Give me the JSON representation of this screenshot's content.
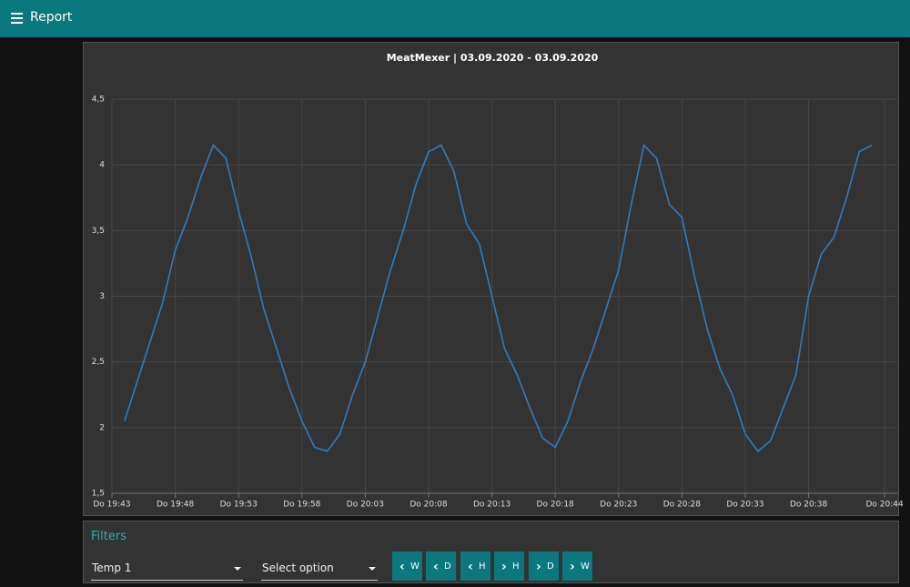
{
  "header": {
    "title": "Report"
  },
  "chart_data": {
    "type": "line",
    "title": "MeatMexer | 03.09.2020 - 03.09.2020",
    "color": "#2f7dbd",
    "grid": true,
    "x": [
      "19:44",
      "19:45",
      "19:46",
      "19:47",
      "19:48",
      "19:49",
      "19:50",
      "19:51",
      "19:52",
      "19:53",
      "19:54",
      "19:55",
      "19:56",
      "19:57",
      "19:58",
      "19:59",
      "20:00",
      "20:01",
      "20:02",
      "20:03",
      "20:04",
      "20:05",
      "20:06",
      "20:07",
      "20:08",
      "20:09",
      "20:10",
      "20:11",
      "20:12",
      "20:13",
      "20:14",
      "20:15",
      "20:16",
      "20:17",
      "20:18",
      "20:19",
      "20:20",
      "20:21",
      "20:22",
      "20:23",
      "20:24",
      "20:25",
      "20:26",
      "20:27",
      "20:28",
      "20:29",
      "20:30",
      "20:31",
      "20:32",
      "20:33",
      "20:34",
      "20:35",
      "20:36",
      "20:37",
      "20:38",
      "20:39",
      "20:40",
      "20:41",
      "20:42",
      "20:43"
    ],
    "values": [
      2.05,
      2.35,
      2.65,
      2.95,
      3.35,
      3.6,
      3.9,
      4.15,
      4.05,
      3.65,
      3.3,
      2.9,
      2.6,
      2.3,
      2.05,
      1.85,
      1.82,
      1.95,
      2.25,
      2.5,
      2.85,
      3.2,
      3.5,
      3.85,
      4.1,
      4.15,
      3.95,
      3.55,
      3.4,
      3.0,
      2.6,
      2.4,
      2.15,
      1.92,
      1.85,
      2.05,
      2.35,
      2.6,
      2.9,
      3.2,
      3.7,
      4.15,
      4.05,
      3.7,
      3.6,
      3.15,
      2.75,
      2.45,
      2.25,
      1.95,
      1.82,
      1.9,
      2.15,
      2.4,
      3.0,
      3.32,
      3.45,
      3.75,
      4.1,
      4.15
    ],
    "xlim": [
      "19:43",
      "20:45"
    ],
    "xticks": [
      {
        "value": "19:43",
        "label": "Do 19:43"
      },
      {
        "value": "19:48",
        "label": "Do 19:48"
      },
      {
        "value": "19:53",
        "label": "Do 19:53"
      },
      {
        "value": "19:58",
        "label": "Do 19:58"
      },
      {
        "value": "20:03",
        "label": "Do 20:03"
      },
      {
        "value": "20:08",
        "label": "Do 20:08"
      },
      {
        "value": "20:13",
        "label": "Do 20:13"
      },
      {
        "value": "20:18",
        "label": "Do 20:18"
      },
      {
        "value": "20:23",
        "label": "Do 20:23"
      },
      {
        "value": "20:28",
        "label": "Do 20:28"
      },
      {
        "value": "20:33",
        "label": "Do 20:33"
      },
      {
        "value": "20:38",
        "label": "Do 20:38"
      },
      {
        "value": "20:44",
        "label": "Do 20:44"
      }
    ],
    "ylim": [
      1.5,
      4.5
    ],
    "yticks": [
      {
        "value": 1.5,
        "label": "1,5"
      },
      2,
      {
        "value": 2.5,
        "label": "2,5"
      },
      3,
      {
        "value": 3.5,
        "label": "3,5"
      },
      4,
      {
        "value": 4.5,
        "label": "4,5"
      }
    ]
  },
  "filters": {
    "title": "Filters",
    "selects": [
      "Temp 1",
      "Select option"
    ],
    "buttons": [
      "W",
      "D",
      "H",
      "H",
      "D",
      "W"
    ]
  }
}
